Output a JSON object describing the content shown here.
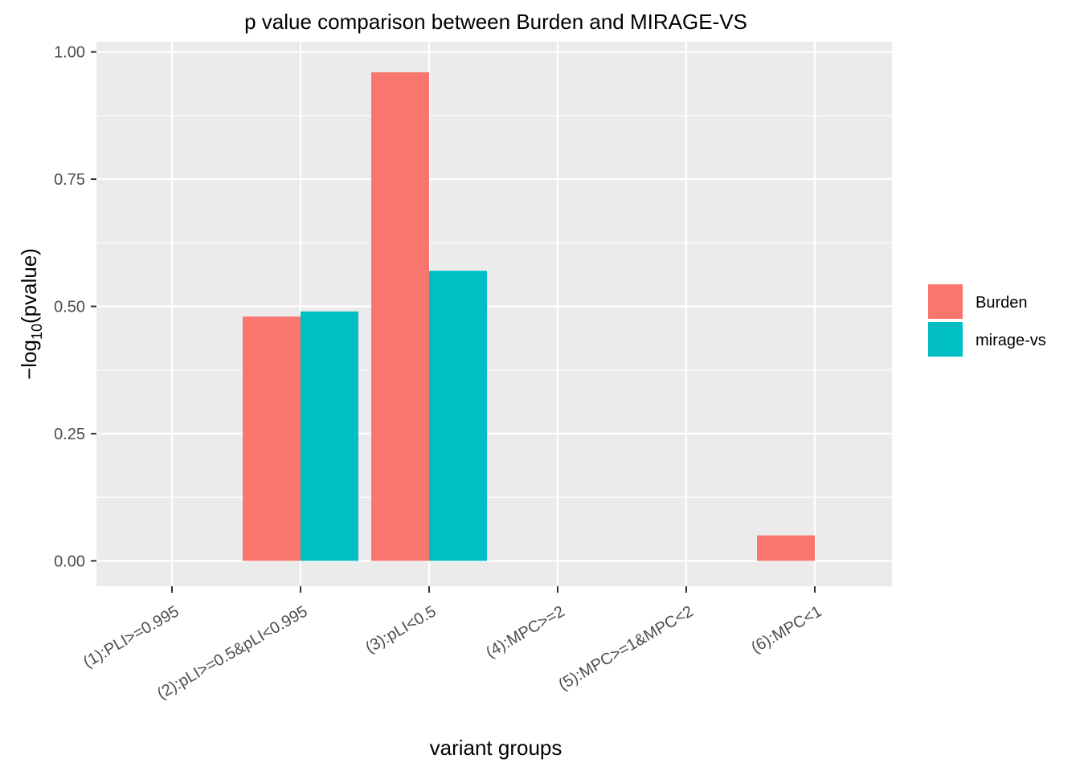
{
  "chart_data": {
    "type": "bar",
    "title": "p value comparison between Burden and MIRAGE-VS",
    "xlabel": "variant groups",
    "ylabel": {
      "prefix": "−log",
      "subscript": "10",
      "body": "(pvalue)"
    },
    "ylim": [
      -0.05,
      1.02
    ],
    "y_ticks": [
      "0.00",
      "0.25",
      "0.50",
      "0.75",
      "1.00"
    ],
    "y_tick_values": [
      0,
      0.25,
      0.5,
      0.75,
      1.0
    ],
    "categories": [
      "(1):PLI>=0.995",
      "(2):pLI>=0.5&pLI<0.995",
      "(3):pLI<0.5",
      "(4):MPC>=2",
      "(5):MPC>=1&MPC<2",
      "(6):MPC<1"
    ],
    "series": [
      {
        "name": "Burden",
        "color": "#F8766D",
        "values": [
          null,
          0.48,
          0.96,
          null,
          null,
          0.05
        ]
      },
      {
        "name": "mirage-vs",
        "color": "#00BFC4",
        "values": [
          null,
          0.49,
          0.57,
          null,
          null,
          null
        ]
      }
    ],
    "grid": true,
    "legend_position": "right",
    "panel_background": "#EBEBEB"
  }
}
